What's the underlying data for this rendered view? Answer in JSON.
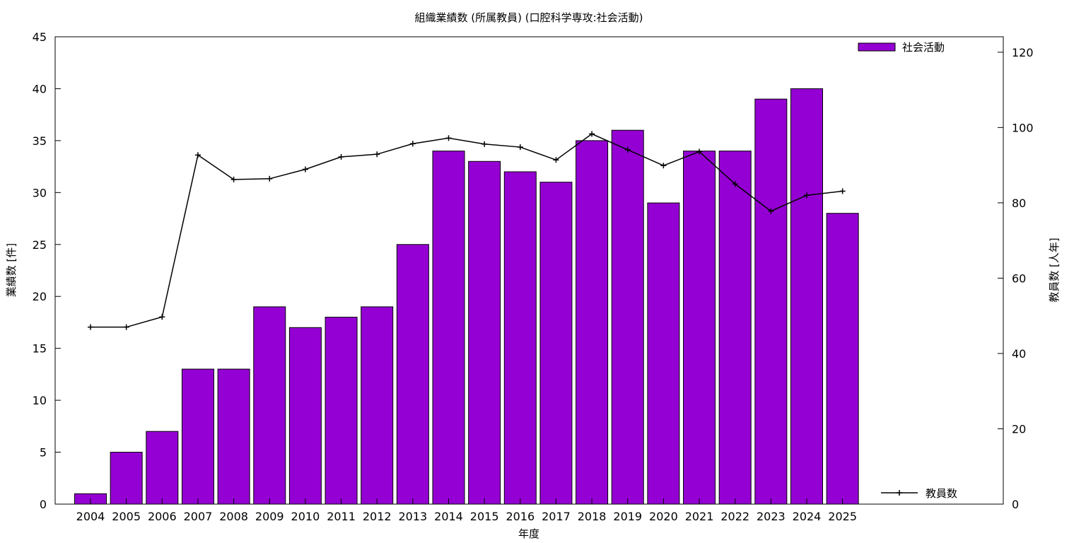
{
  "chart_data": {
    "type": "bar",
    "title": "組織業績数 (所属教員) (口腔科学専攻:社会活動)",
    "xlabel": "年度",
    "ylabel": "業績数 [件]",
    "y2label": "教員数 [人年]",
    "categories": [
      "2004",
      "2005",
      "2006",
      "2007",
      "2008",
      "2009",
      "2010",
      "2011",
      "2012",
      "2013",
      "2014",
      "2015",
      "2016",
      "2017",
      "2018",
      "2019",
      "2020",
      "2021",
      "2022",
      "2023",
      "2024",
      "2025"
    ],
    "ylim": [
      0,
      45
    ],
    "yticks": [
      0,
      5,
      10,
      15,
      20,
      25,
      30,
      35,
      40,
      45
    ],
    "y2lim": [
      0,
      124.1
    ],
    "y2ticks": [
      0,
      20,
      40,
      60,
      80,
      100,
      120
    ],
    "legend_placement": "top-right",
    "series": [
      {
        "name": "社会活動",
        "kind": "bar",
        "axis": "y",
        "color": "#9400d3",
        "values": [
          1,
          5,
          7,
          13,
          13,
          19,
          17,
          18,
          19,
          25,
          34,
          33,
          32,
          31,
          35,
          36,
          29,
          34,
          34,
          39,
          40,
          28
        ]
      },
      {
        "name": "教員数",
        "kind": "line",
        "axis": "y2",
        "color": "#000000",
        "values": [
          47,
          47,
          49.7,
          92.7,
          86.2,
          86.4,
          88.9,
          92.2,
          92.9,
          95.7,
          97.2,
          95.6,
          94.8,
          91.4,
          98.3,
          94.1,
          89.9,
          93.6,
          85,
          77.8,
          82,
          83.1
        ]
      }
    ]
  }
}
